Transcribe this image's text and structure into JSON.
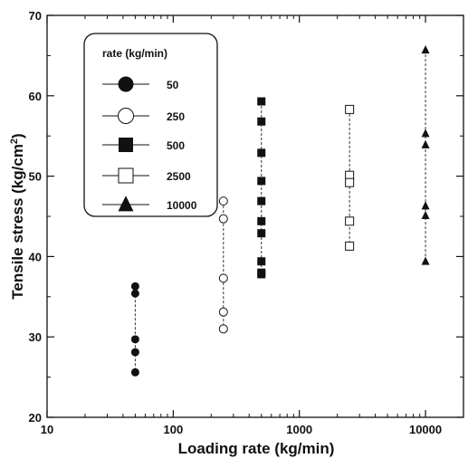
{
  "chart_data": {
    "type": "scatter",
    "xlabel": "Loading rate (kg/min)",
    "ylabel": "Tensile stress (kg/cm",
    "ylabel_superscript": "2",
    "ylabel_suffix": ")",
    "xscale": "log",
    "xlim": [
      10,
      20000
    ],
    "ylim": [
      20,
      70
    ],
    "xticks": [
      10,
      100,
      1000,
      10000
    ],
    "xtick_labels": [
      "10",
      "100",
      "1000",
      "10000"
    ],
    "yticks": [
      20,
      30,
      40,
      50,
      60,
      70
    ],
    "ytick_labels": [
      "20",
      "30",
      "40",
      "50",
      "60",
      "70"
    ],
    "grid": false,
    "legend": {
      "title": "rate (kg/min)",
      "placement": "top-left",
      "entries": [
        "50",
        "250",
        "500",
        "2500",
        "10000"
      ]
    },
    "series": [
      {
        "name": "50",
        "marker": "circle-filled",
        "x": [
          50,
          50,
          50,
          50,
          50
        ],
        "y": [
          36.3,
          35.4,
          29.7,
          28.1,
          25.6
        ]
      },
      {
        "name": "250",
        "marker": "circle-open",
        "x": [
          250,
          250,
          250,
          250,
          250
        ],
        "y": [
          46.9,
          44.7,
          37.3,
          33.1,
          31.0
        ]
      },
      {
        "name": "500",
        "marker": "square-filled",
        "x": [
          500,
          500,
          500,
          500,
          500,
          500,
          500,
          500,
          500,
          500
        ],
        "y": [
          59.3,
          56.8,
          52.9,
          49.4,
          46.9,
          44.4,
          42.9,
          39.4,
          38.0,
          37.8
        ]
      },
      {
        "name": "2500",
        "marker": "square-open",
        "x": [
          2500,
          2500,
          2500,
          2500,
          2500
        ],
        "y": [
          58.3,
          50.1,
          49.2,
          44.4,
          41.3
        ]
      },
      {
        "name": "10000",
        "marker": "triangle-filled",
        "x": [
          10000,
          10000,
          10000,
          10000,
          10000,
          10000
        ],
        "y": [
          65.7,
          55.3,
          53.9,
          46.3,
          45.1,
          39.4
        ]
      }
    ]
  }
}
